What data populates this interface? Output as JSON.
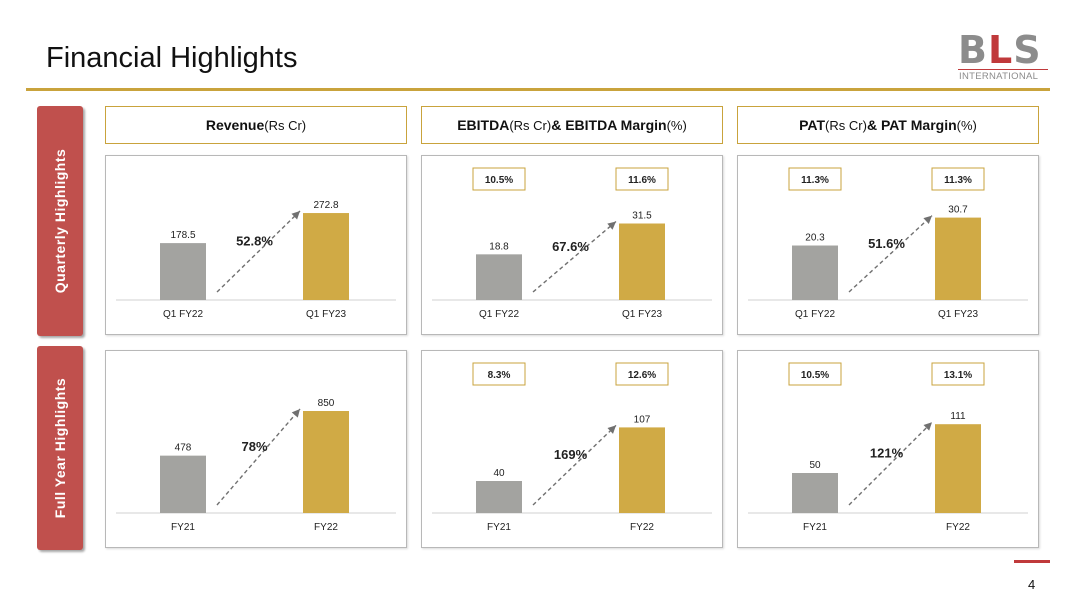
{
  "header": {
    "title": "Financial Highlights"
  },
  "logo": {
    "main_b": "B",
    "main_l": "L",
    "main_s": "S",
    "sub": "INTERNATIONAL"
  },
  "rows": {
    "quarterly": "Quarterly Highlights",
    "full_year": "Full Year Highlights"
  },
  "columns": [
    {
      "bold": "Revenue",
      "unit": " (Rs Cr)",
      "bold2": "",
      "unit2": ""
    },
    {
      "bold": "EBITDA",
      "unit": " (Rs Cr) ",
      "bold2": "& EBITDA Margin",
      "unit2": " (%)"
    },
    {
      "bold": "PAT",
      "unit": " (Rs Cr) ",
      "bold2": "& PAT Margin",
      "unit2": " (%)"
    }
  ],
  "colors": {
    "bar_prev": "#a3a3a0",
    "bar_curr": "#d0aa45",
    "accent_red": "#c0504d",
    "gold": "#c9a33c"
  },
  "chart_data": [
    {
      "type": "bar",
      "categories": [
        "Q1 FY22",
        "Q1 FY23"
      ],
      "values": [
        178.5,
        272.8
      ],
      "labels": [
        "178.5",
        "272.8"
      ],
      "growth": "52.8%",
      "margins": [],
      "ylim": [
        0,
        320
      ]
    },
    {
      "type": "bar",
      "categories": [
        "Q1 FY22",
        "Q1 FY23"
      ],
      "values": [
        18.8,
        31.5
      ],
      "labels": [
        "18.8",
        "31.5"
      ],
      "growth": "67.6%",
      "margins": [
        "10.5%",
        "11.6%"
      ],
      "ylim": [
        0,
        42
      ]
    },
    {
      "type": "bar",
      "categories": [
        "Q1 FY22",
        "Q1 FY23"
      ],
      "values": [
        20.3,
        30.7
      ],
      "labels": [
        "20.3",
        "30.7"
      ],
      "growth": "51.6%",
      "margins": [
        "11.3%",
        "11.3%"
      ],
      "ylim": [
        0,
        38
      ]
    },
    {
      "type": "bar",
      "categories": [
        "FY21",
        "FY22"
      ],
      "values": [
        478,
        850
      ],
      "labels": [
        "478",
        "850"
      ],
      "growth": "78%",
      "margins": [],
      "ylim": [
        0,
        1000
      ]
    },
    {
      "type": "bar",
      "categories": [
        "FY21",
        "FY22"
      ],
      "values": [
        40,
        107
      ],
      "labels": [
        "40",
        "107"
      ],
      "growth": "169%",
      "margins": [
        "8.3%",
        "12.6%"
      ],
      "ylim": [
        0,
        150
      ]
    },
    {
      "type": "bar",
      "categories": [
        "FY21",
        "FY22"
      ],
      "values": [
        50,
        111
      ],
      "labels": [
        "50",
        "111"
      ],
      "growth": "121%",
      "margins": [
        "10.5%",
        "13.1%"
      ],
      "ylim": [
        0,
        150
      ]
    }
  ],
  "footer": {
    "page_number": "4"
  }
}
